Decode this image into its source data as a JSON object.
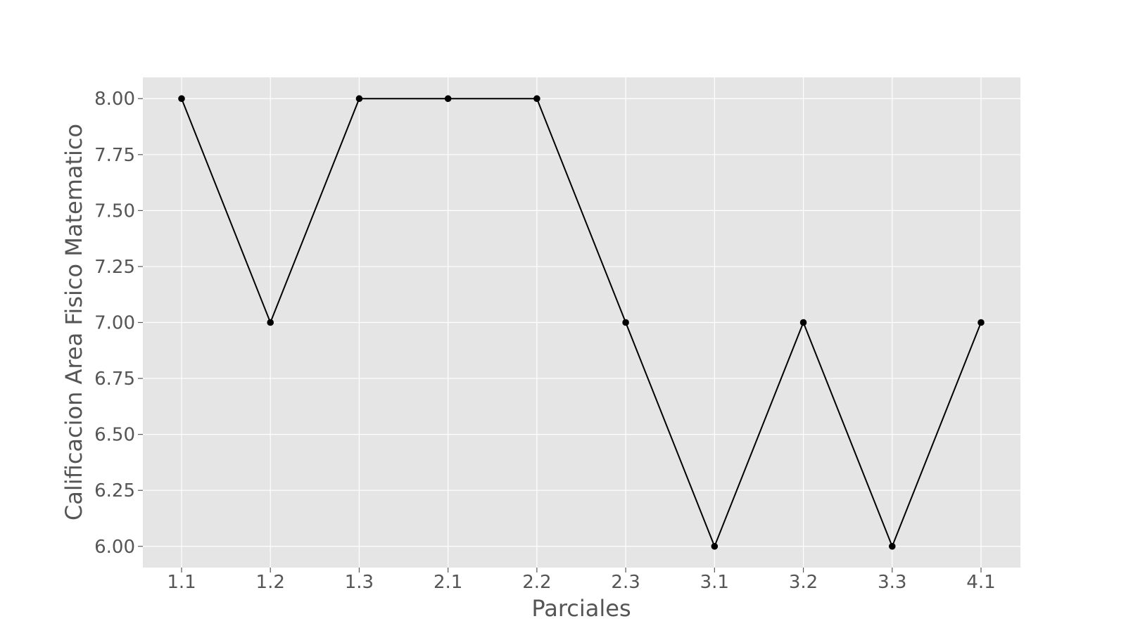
{
  "chart_data": {
    "type": "line",
    "categories": [
      "1.1",
      "1.2",
      "1.3",
      "2.1",
      "2.2",
      "2.3",
      "3.1",
      "3.2",
      "3.3",
      "4.1"
    ],
    "series": [
      {
        "values": [
          8,
          7,
          8,
          8,
          8,
          7,
          6,
          7,
          6,
          7
        ],
        "color": "#000000"
      }
    ],
    "title": "",
    "xlabel": "Parciales",
    "ylabel": "Calificacion Area Fisico Matematico",
    "ylim": [
      5.905,
      8.095
    ],
    "yticks": [
      "6.00",
      "6.25",
      "6.50",
      "6.75",
      "7.00",
      "7.25",
      "7.50",
      "7.75",
      "8.00"
    ],
    "grid": true,
    "legend": "none",
    "colors": {
      "plot_background": "#e5e5e5",
      "grid": "#ffffff",
      "text": "#555555",
      "line": "#000000"
    }
  }
}
